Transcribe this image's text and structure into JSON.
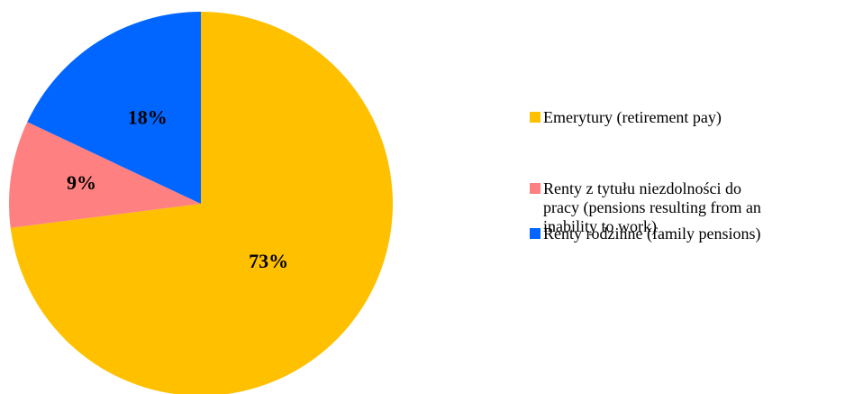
{
  "chart_data": {
    "type": "pie",
    "title": "",
    "start_angle_deg": 0,
    "direction": "clockwise",
    "legend_position": "right",
    "slices": [
      {
        "label": "Emerytury (retirement pay)",
        "value": 73,
        "display": "73%",
        "color": "#FFC000"
      },
      {
        "label": "Renty z tytułu niezdolności do pracy (pensions resulting from an inability to work)",
        "value": 9,
        "display": "9%",
        "color": "#FF8080"
      },
      {
        "label": "Renty rodzinne (family pensions)",
        "value": 18,
        "display": "18%",
        "color": "#0066FF"
      }
    ]
  }
}
